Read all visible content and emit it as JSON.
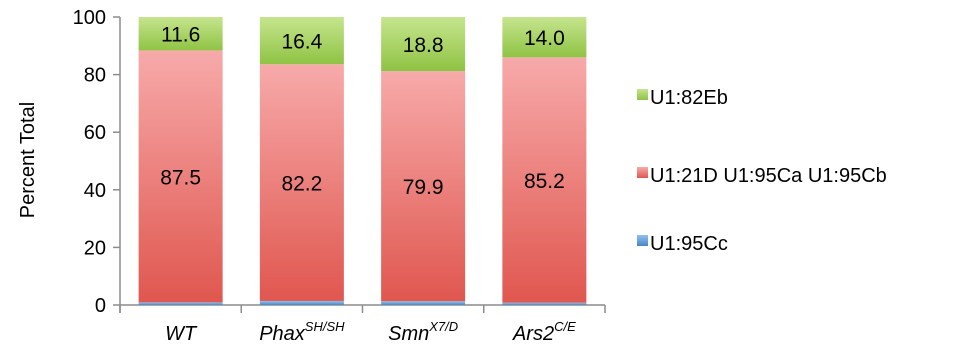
{
  "chart_data": {
    "type": "bar",
    "stacked": true,
    "ylabel": "Percent Total",
    "ylim": [
      0,
      100
    ],
    "yticks": [
      0,
      20,
      40,
      60,
      80,
      100
    ],
    "categories": [
      {
        "base": "WT",
        "sup": ""
      },
      {
        "base": "Phax",
        "sup": "SH/SH"
      },
      {
        "base": "Smn",
        "sup": "X7/D"
      },
      {
        "base": "Ars2",
        "sup": "C/E"
      }
    ],
    "series": [
      {
        "name": "U1:95Cc",
        "values": [
          0.9,
          1.4,
          1.3,
          0.8
        ],
        "color": "#5b9bd5",
        "labels": [
          "",
          "",
          "",
          ""
        ]
      },
      {
        "name": "U1:21D U1:95Ca U1:95Cb",
        "values": [
          87.5,
          82.2,
          79.9,
          85.2
        ],
        "color": "#ef8b8b",
        "labels": [
          "87.5",
          "82.2",
          "79.9",
          "85.2"
        ]
      },
      {
        "name": "U1:82Eb",
        "values": [
          11.6,
          16.4,
          18.8,
          14.0
        ],
        "color": "#a9d468",
        "labels": [
          "11.6",
          "16.4",
          "18.8",
          "14.0"
        ]
      }
    ],
    "legend_position": "right",
    "grid": false
  }
}
